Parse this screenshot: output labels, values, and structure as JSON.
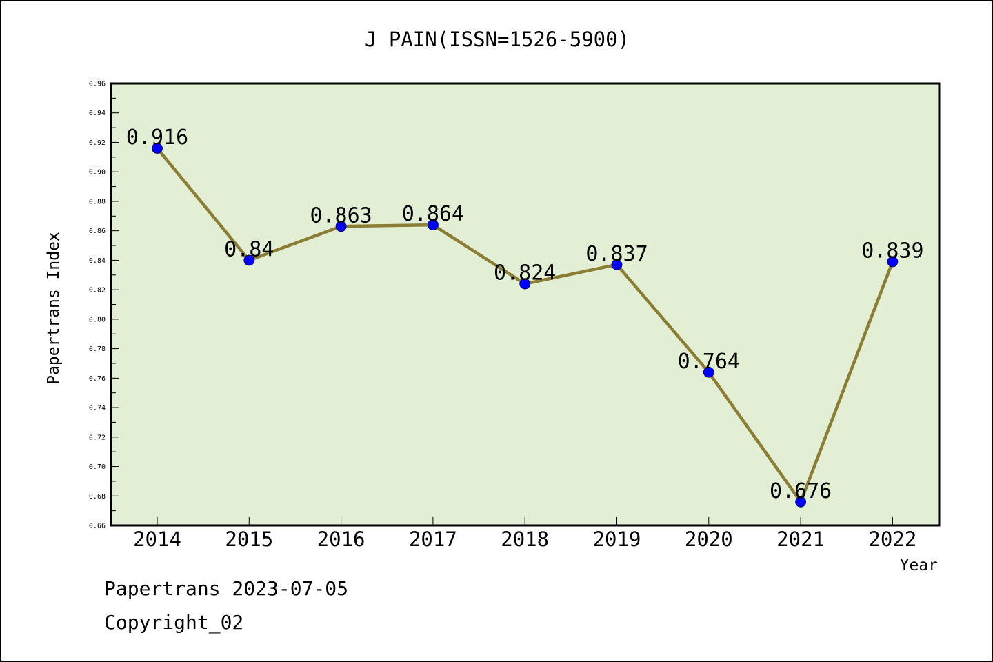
{
  "chart_data": {
    "type": "line",
    "title": "J PAIN(ISSN=1526-5900)",
    "xlabel": "Year",
    "ylabel": "Papertrans Index",
    "categories": [
      "2014",
      "2015",
      "2016",
      "2017",
      "2018",
      "2019",
      "2020",
      "2021",
      "2022"
    ],
    "series": [
      {
        "values": [
          0.916,
          0.84,
          0.863,
          0.864,
          0.824,
          0.837,
          0.764,
          0.676,
          0.839
        ],
        "labels": [
          "0.916",
          "0.84",
          "0.863",
          "0.864",
          "0.824",
          "0.837",
          "0.764",
          "0.676",
          "0.839"
        ]
      }
    ],
    "ylim": [
      0.66,
      0.96
    ],
    "yticks": [
      "0.66",
      "0.68",
      "0.70",
      "0.72",
      "0.74",
      "0.76",
      "0.78",
      "0.80",
      "0.82",
      "0.84",
      "0.86",
      "0.88",
      "0.90",
      "0.92",
      "0.94",
      "0.96"
    ],
    "grid": false,
    "legend": "none",
    "colors": {
      "plot_background": "#e2efd5",
      "line": "#8b7d33",
      "marker": "#0000ff"
    }
  },
  "footer": {
    "line1": "Papertrans 2023-07-05",
    "line2": "Copyright_02"
  }
}
